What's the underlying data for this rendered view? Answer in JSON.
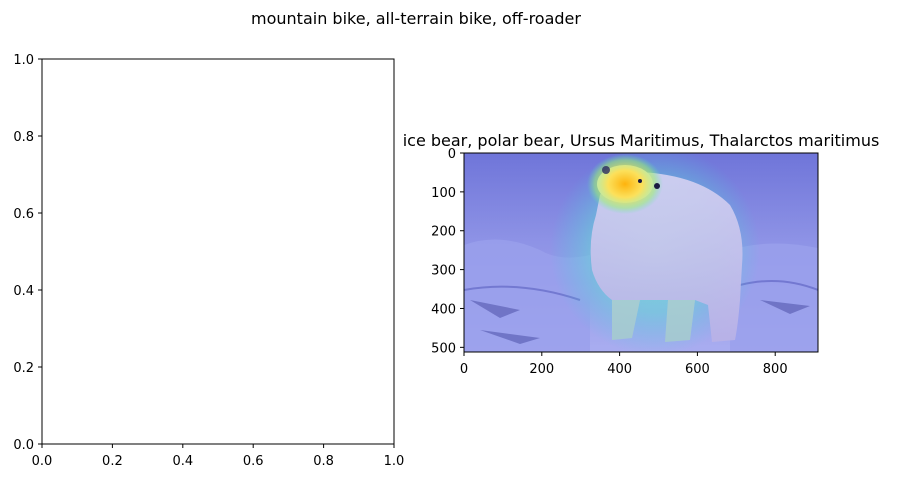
{
  "figure": {
    "suptitle": "mountain bike, all-terrain bike, off-roader"
  },
  "chart_data": [
    {
      "type": "line",
      "title": "",
      "xlabel": "",
      "ylabel": "",
      "series": [],
      "xlim": [
        0,
        1
      ],
      "ylim": [
        0,
        1
      ],
      "xticks": [
        "0.0",
        "0.2",
        "0.4",
        "0.6",
        "0.8",
        "1.0"
      ],
      "yticks": [
        "0.0",
        "0.2",
        "0.4",
        "0.6",
        "0.8",
        "1.0"
      ],
      "grid": false
    },
    {
      "type": "heatmap",
      "title": "ice bear, polar bear, Ursus Maritimus, Thalarctos maritimus",
      "xlabel": "",
      "ylabel": "",
      "image_width": 910,
      "image_height": 512,
      "xticks": [
        "0",
        "200",
        "400",
        "600",
        "800"
      ],
      "yticks": [
        "0",
        "100",
        "200",
        "300",
        "400",
        "500"
      ],
      "xlim": [
        0,
        910
      ],
      "ylim": [
        512,
        0
      ],
      "colormap": "jet",
      "grid": false
    }
  ]
}
